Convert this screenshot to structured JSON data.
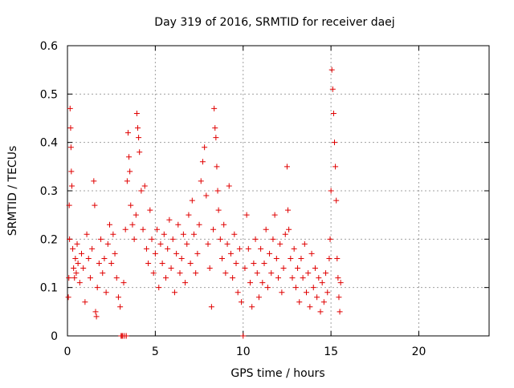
{
  "chart_data": {
    "type": "scatter",
    "title": "Day 319 of 2016, SRMTID for receiver daej",
    "xlabel": "GPS time / hours",
    "ylabel": "SRMTID / TECUs",
    "xlim": [
      0,
      24
    ],
    "ylim": [
      0,
      0.6
    ],
    "xticks": [
      0,
      5,
      10,
      15,
      20
    ],
    "xtick_labels": [
      "0",
      "5",
      "10",
      "15",
      "20"
    ],
    "yticks": [
      0,
      0.1,
      0.2,
      0.3,
      0.4,
      0.5,
      0.6
    ],
    "ytick_labels": [
      "0",
      "0.1",
      "0.2",
      "0.3",
      "0.4",
      "0.5",
      "0.6"
    ],
    "grid": true,
    "marker": "+",
    "marker_color": "#e00000",
    "series": [
      {
        "name": "SRMTID",
        "points": [
          [
            0.05,
            0.08
          ],
          [
            0.08,
            0.12
          ],
          [
            0.1,
            0.27
          ],
          [
            0.12,
            0.2
          ],
          [
            0.15,
            0.47
          ],
          [
            0.18,
            0.43
          ],
          [
            0.2,
            0.39
          ],
          [
            0.22,
            0.34
          ],
          [
            0.25,
            0.31
          ],
          [
            0.3,
            0.18
          ],
          [
            0.35,
            0.14
          ],
          [
            0.4,
            0.12
          ],
          [
            0.45,
            0.16
          ],
          [
            0.5,
            0.13
          ],
          [
            0.55,
            0.19
          ],
          [
            0.6,
            0.15
          ],
          [
            0.7,
            0.11
          ],
          [
            0.8,
            0.17
          ],
          [
            0.9,
            0.14
          ],
          [
            1.0,
            0.07
          ],
          [
            1.1,
            0.21
          ],
          [
            1.2,
            0.16
          ],
          [
            1.3,
            0.12
          ],
          [
            1.4,
            0.18
          ],
          [
            1.5,
            0.32
          ],
          [
            1.55,
            0.27
          ],
          [
            1.6,
            0.05
          ],
          [
            1.65,
            0.04
          ],
          [
            1.7,
            0.1
          ],
          [
            1.8,
            0.15
          ],
          [
            1.9,
            0.2
          ],
          [
            2.0,
            0.13
          ],
          [
            2.1,
            0.16
          ],
          [
            2.2,
            0.09
          ],
          [
            2.3,
            0.19
          ],
          [
            2.4,
            0.23
          ],
          [
            2.5,
            0.15
          ],
          [
            2.6,
            0.21
          ],
          [
            2.7,
            0.17
          ],
          [
            2.8,
            0.12
          ],
          [
            2.9,
            0.08
          ],
          [
            3.0,
            0.06
          ],
          [
            3.05,
            0.0
          ],
          [
            3.1,
            0.0
          ],
          [
            3.15,
            0.0
          ],
          [
            3.2,
            0.11
          ],
          [
            3.25,
            0.0
          ],
          [
            3.3,
            0.22
          ],
          [
            3.35,
            0.0
          ],
          [
            3.4,
            0.32
          ],
          [
            3.45,
            0.42
          ],
          [
            3.5,
            0.37
          ],
          [
            3.55,
            0.34
          ],
          [
            3.6,
            0.27
          ],
          [
            3.7,
            0.23
          ],
          [
            3.8,
            0.2
          ],
          [
            3.9,
            0.25
          ],
          [
            3.95,
            0.46
          ],
          [
            4.0,
            0.43
          ],
          [
            4.05,
            0.41
          ],
          [
            4.1,
            0.38
          ],
          [
            4.2,
            0.3
          ],
          [
            4.3,
            0.22
          ],
          [
            4.4,
            0.31
          ],
          [
            4.5,
            0.18
          ],
          [
            4.6,
            0.15
          ],
          [
            4.7,
            0.26
          ],
          [
            4.8,
            0.2
          ],
          [
            4.9,
            0.13
          ],
          [
            5.0,
            0.17
          ],
          [
            5.1,
            0.22
          ],
          [
            5.2,
            0.1
          ],
          [
            5.3,
            0.19
          ],
          [
            5.4,
            0.15
          ],
          [
            5.5,
            0.21
          ],
          [
            5.6,
            0.12
          ],
          [
            5.7,
            0.18
          ],
          [
            5.8,
            0.24
          ],
          [
            5.9,
            0.14
          ],
          [
            6.0,
            0.2
          ],
          [
            6.1,
            0.09
          ],
          [
            6.2,
            0.17
          ],
          [
            6.3,
            0.23
          ],
          [
            6.4,
            0.13
          ],
          [
            6.5,
            0.16
          ],
          [
            6.6,
            0.21
          ],
          [
            6.7,
            0.11
          ],
          [
            6.8,
            0.19
          ],
          [
            6.9,
            0.25
          ],
          [
            7.0,
            0.15
          ],
          [
            7.1,
            0.28
          ],
          [
            7.2,
            0.21
          ],
          [
            7.3,
            0.13
          ],
          [
            7.4,
            0.17
          ],
          [
            7.5,
            0.23
          ],
          [
            7.6,
            0.32
          ],
          [
            7.7,
            0.36
          ],
          [
            7.8,
            0.39
          ],
          [
            7.9,
            0.29
          ],
          [
            8.0,
            0.19
          ],
          [
            8.1,
            0.14
          ],
          [
            8.2,
            0.06
          ],
          [
            8.3,
            0.22
          ],
          [
            8.35,
            0.47
          ],
          [
            8.4,
            0.43
          ],
          [
            8.45,
            0.41
          ],
          [
            8.5,
            0.35
          ],
          [
            8.55,
            0.3
          ],
          [
            8.6,
            0.26
          ],
          [
            8.7,
            0.2
          ],
          [
            8.8,
            0.16
          ],
          [
            8.9,
            0.23
          ],
          [
            9.0,
            0.13
          ],
          [
            9.1,
            0.19
          ],
          [
            9.2,
            0.31
          ],
          [
            9.3,
            0.17
          ],
          [
            9.4,
            0.12
          ],
          [
            9.5,
            0.21
          ],
          [
            9.6,
            0.15
          ],
          [
            9.7,
            0.09
          ],
          [
            9.8,
            0.18
          ],
          [
            9.9,
            0.07
          ],
          [
            10.0,
            0.0
          ],
          [
            10.1,
            0.14
          ],
          [
            10.2,
            0.25
          ],
          [
            10.3,
            0.18
          ],
          [
            10.4,
            0.11
          ],
          [
            10.5,
            0.06
          ],
          [
            10.6,
            0.15
          ],
          [
            10.7,
            0.2
          ],
          [
            10.8,
            0.13
          ],
          [
            10.9,
            0.08
          ],
          [
            11.0,
            0.18
          ],
          [
            11.1,
            0.11
          ],
          [
            11.2,
            0.15
          ],
          [
            11.3,
            0.22
          ],
          [
            11.4,
            0.1
          ],
          [
            11.5,
            0.17
          ],
          [
            11.6,
            0.13
          ],
          [
            11.7,
            0.2
          ],
          [
            11.8,
            0.25
          ],
          [
            11.9,
            0.16
          ],
          [
            12.0,
            0.12
          ],
          [
            12.1,
            0.19
          ],
          [
            12.2,
            0.09
          ],
          [
            12.3,
            0.14
          ],
          [
            12.4,
            0.21
          ],
          [
            12.5,
            0.35
          ],
          [
            12.55,
            0.26
          ],
          [
            12.6,
            0.22
          ],
          [
            12.7,
            0.16
          ],
          [
            12.8,
            0.12
          ],
          [
            12.9,
            0.18
          ],
          [
            13.0,
            0.1
          ],
          [
            13.1,
            0.14
          ],
          [
            13.2,
            0.07
          ],
          [
            13.3,
            0.16
          ],
          [
            13.4,
            0.12
          ],
          [
            13.5,
            0.19
          ],
          [
            13.6,
            0.09
          ],
          [
            13.7,
            0.13
          ],
          [
            13.8,
            0.06
          ],
          [
            13.9,
            0.17
          ],
          [
            14.0,
            0.1
          ],
          [
            14.1,
            0.14
          ],
          [
            14.2,
            0.08
          ],
          [
            14.3,
            0.12
          ],
          [
            14.4,
            0.05
          ],
          [
            14.5,
            0.11
          ],
          [
            14.6,
            0.07
          ],
          [
            14.7,
            0.13
          ],
          [
            14.8,
            0.09
          ],
          [
            14.9,
            0.16
          ],
          [
            14.95,
            0.2
          ],
          [
            15.0,
            0.3
          ],
          [
            15.05,
            0.55
          ],
          [
            15.1,
            0.51
          ],
          [
            15.15,
            0.46
          ],
          [
            15.2,
            0.4
          ],
          [
            15.25,
            0.35
          ],
          [
            15.3,
            0.28
          ],
          [
            15.35,
            0.16
          ],
          [
            15.4,
            0.12
          ],
          [
            15.45,
            0.08
          ],
          [
            15.5,
            0.05
          ],
          [
            15.55,
            0.11
          ]
        ]
      }
    ]
  }
}
